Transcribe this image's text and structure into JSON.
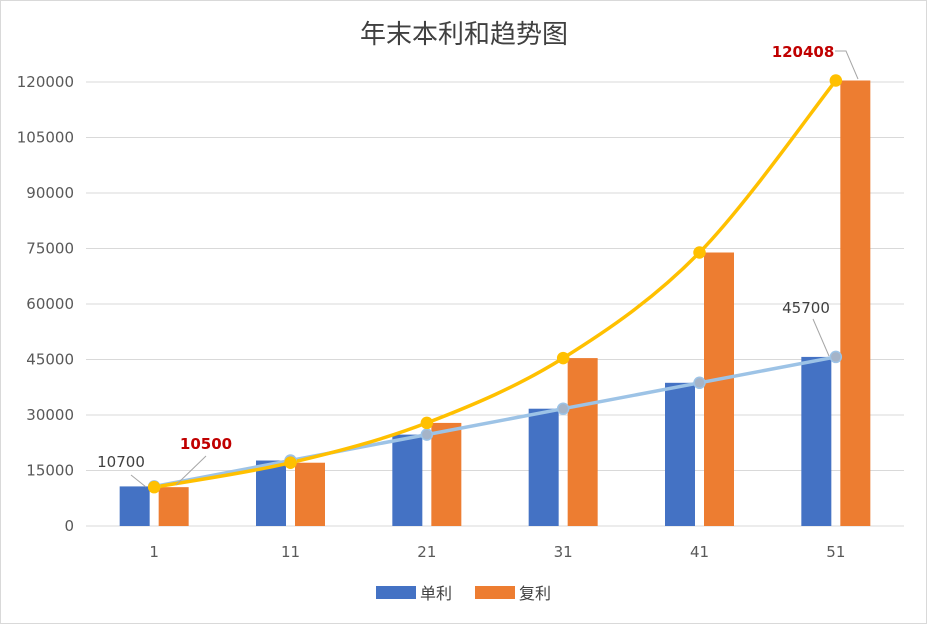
{
  "chart_data": {
    "type": "bar",
    "title": "年末本利和趋势图",
    "categories": [
      "1",
      "11",
      "21",
      "31",
      "41",
      "51"
    ],
    "ylim": [
      0,
      120000
    ],
    "yticks": [
      0,
      15000,
      30000,
      45000,
      60000,
      75000,
      90000,
      105000,
      120000
    ],
    "grid": true,
    "legend_position": "bottom",
    "series": [
      {
        "name": "单利",
        "type": "bar",
        "color": "#4472c4",
        "values": [
          10700,
          17700,
          24700,
          31700,
          38700,
          45700
        ]
      },
      {
        "name": "复利",
        "type": "bar",
        "color": "#ed7d31",
        "values": [
          10500,
          17103,
          27860,
          45380,
          73920,
          120408
        ]
      },
      {
        "type": "line",
        "color": "#9dc3e6",
        "values": [
          10700,
          17700,
          24700,
          31700,
          38700,
          45700
        ]
      },
      {
        "type": "line",
        "color": "#ffc000",
        "values": [
          10500,
          17103,
          27860,
          45380,
          73920,
          120408
        ]
      }
    ],
    "annotations": [
      {
        "text": "10700",
        "series": 0,
        "index": 0,
        "color": "#404040"
      },
      {
        "text": "10500",
        "series": 1,
        "index": 0,
        "color": "#c00000"
      },
      {
        "text": "45700",
        "series": 0,
        "index": 5,
        "color": "#404040"
      },
      {
        "text": "120408",
        "series": 1,
        "index": 5,
        "color": "#c00000"
      }
    ]
  }
}
